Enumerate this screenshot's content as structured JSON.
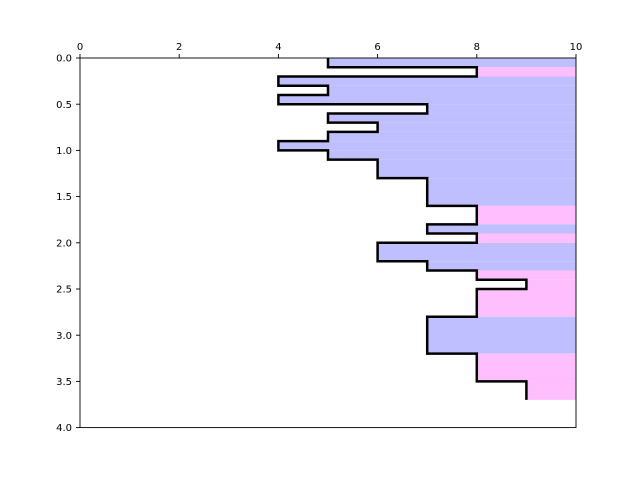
{
  "chart_data": {
    "type": "area",
    "title": "",
    "xlabel": "",
    "ylabel": "",
    "xlim": [
      0,
      10
    ],
    "ylim": [
      4.0,
      0.0
    ],
    "x_axis_position": "top",
    "y_inverted": true,
    "grid": false,
    "x_ticks": [
      0,
      2,
      4,
      6,
      8,
      10
    ],
    "x_tick_labels": [
      "0",
      "2",
      "4",
      "6",
      "8",
      "10"
    ],
    "y_ticks": [
      0.0,
      0.5,
      1.0,
      1.5,
      2.0,
      2.5,
      3.0,
      3.5,
      4.0
    ],
    "y_tick_labels": [
      "0.0",
      "0.5",
      "1.0",
      "1.5",
      "2.0",
      "2.5",
      "3.0",
      "3.5",
      "4.0"
    ],
    "fill_colors": {
      "blue": "#bfbfff",
      "pink": "#ffbfff"
    },
    "step_boundaries": [
      0.0,
      0.1,
      0.2,
      0.3,
      0.4,
      0.5,
      0.6,
      0.7,
      0.8,
      0.9,
      1.0,
      1.1,
      1.3,
      1.6,
      1.8,
      1.9,
      2.0,
      2.2,
      2.3,
      2.4,
      2.5,
      2.8,
      3.2,
      3.5,
      3.7
    ],
    "step_values": [
      5,
      8,
      4,
      5,
      4,
      7,
      5,
      6,
      5,
      4,
      5,
      6,
      7,
      8,
      7,
      8,
      6,
      7,
      8,
      9,
      8,
      7,
      8,
      9
    ],
    "step_fill": [
      "blue",
      "pink",
      "blue",
      "blue",
      "blue",
      "blue",
      "blue",
      "blue",
      "blue",
      "blue",
      "blue",
      "blue",
      "blue",
      "pink",
      "blue",
      "pink",
      "blue",
      "blue",
      "pink",
      "pink",
      "pink",
      "blue",
      "pink",
      "pink"
    ]
  }
}
